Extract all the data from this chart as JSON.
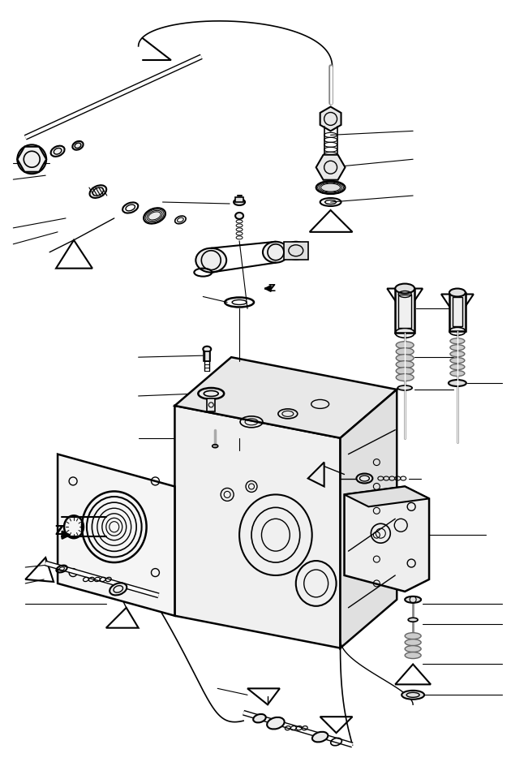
{
  "bg_color": "#ffffff",
  "line_color": "#000000",
  "fig_width": 6.3,
  "fig_height": 9.55,
  "dpi": 100
}
